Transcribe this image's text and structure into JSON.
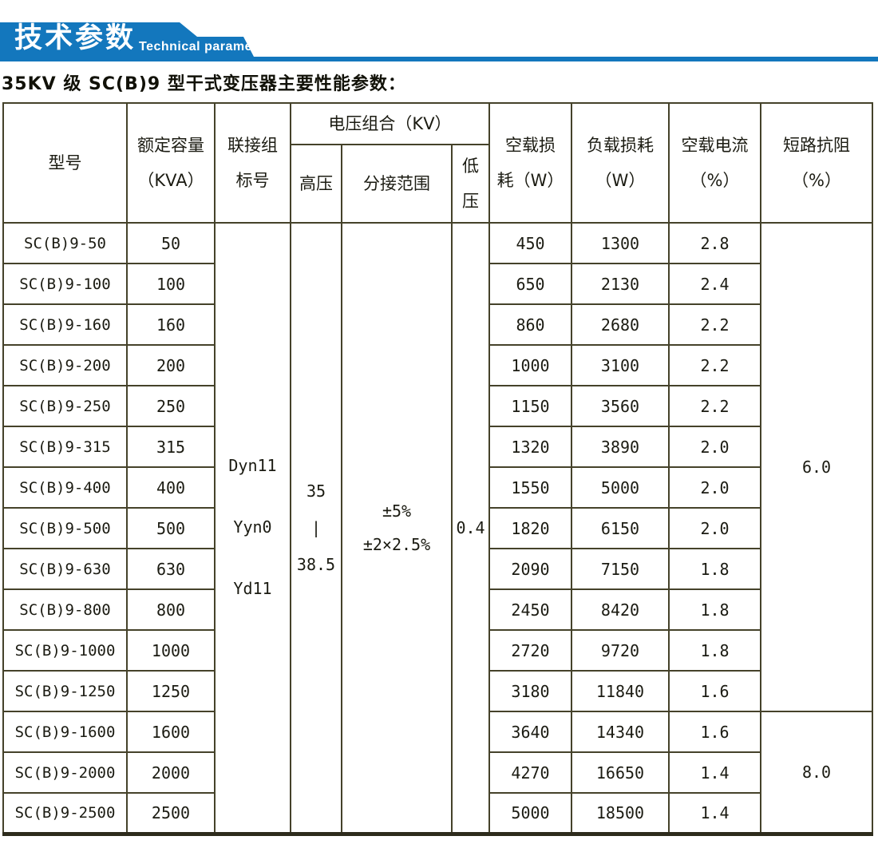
{
  "banner": {
    "title_cn": "技术参数",
    "title_en": "Technical parameter",
    "ribbon_color": "#1377bd"
  },
  "title": "35KV 级 SC(B)9 型干式变压器主要性能参数：",
  "table": {
    "header": {
      "model": "型号",
      "capacity": "额定容量\n（KVA）",
      "vector_group": "联接组\n标号",
      "voltage_combo": "电压组合（KV）",
      "hv": "高压",
      "tap_range": "分接范围",
      "lv": "低\n压",
      "no_load_loss": "空载损\n耗（W）",
      "load_loss": "负载损耗\n（W）",
      "no_load_current": "空载电流\n（%）",
      "impedance": "短路抗阻\n（%）"
    },
    "merged": {
      "vector_group": "Dyn11\nYyn0\nYd11",
      "hv": "35\n|\n38.5",
      "tap_range": "±5%\n±2×2.5%",
      "lv": "0.4",
      "impedance_groups": [
        {
          "value": "6.0",
          "rows": 12
        },
        {
          "value": "8.0",
          "rows": 3
        }
      ]
    },
    "rows": [
      {
        "model": "SC(B)9-50",
        "kva": "50",
        "no_load_loss": "450",
        "load_loss": "1300",
        "no_load_current": "2.8"
      },
      {
        "model": "SC(B)9-100",
        "kva": "100",
        "no_load_loss": "650",
        "load_loss": "2130",
        "no_load_current": "2.4"
      },
      {
        "model": "SC(B)9-160",
        "kva": "160",
        "no_load_loss": "860",
        "load_loss": "2680",
        "no_load_current": "2.2"
      },
      {
        "model": "SC(B)9-200",
        "kva": "200",
        "no_load_loss": "1000",
        "load_loss": "3100",
        "no_load_current": "2.2"
      },
      {
        "model": "SC(B)9-250",
        "kva": "250",
        "no_load_loss": "1150",
        "load_loss": "3560",
        "no_load_current": "2.2"
      },
      {
        "model": "SC(B)9-315",
        "kva": "315",
        "no_load_loss": "1320",
        "load_loss": "3890",
        "no_load_current": "2.0"
      },
      {
        "model": "SC(B)9-400",
        "kva": "400",
        "no_load_loss": "1550",
        "load_loss": "5000",
        "no_load_current": "2.0"
      },
      {
        "model": "SC(B)9-500",
        "kva": "500",
        "no_load_loss": "1820",
        "load_loss": "6150",
        "no_load_current": "2.0"
      },
      {
        "model": "SC(B)9-630",
        "kva": "630",
        "no_load_loss": "2090",
        "load_loss": "7150",
        "no_load_current": "1.8"
      },
      {
        "model": "SC(B)9-800",
        "kva": "800",
        "no_load_loss": "2450",
        "load_loss": "8420",
        "no_load_current": "1.8"
      },
      {
        "model": "SC(B)9-1000",
        "kva": "1000",
        "no_load_loss": "2720",
        "load_loss": "9720",
        "no_load_current": "1.8"
      },
      {
        "model": "SC(B)9-1250",
        "kva": "1250",
        "no_load_loss": "3180",
        "load_loss": "11840",
        "no_load_current": "1.6"
      },
      {
        "model": "SC(B)9-1600",
        "kva": "1600",
        "no_load_loss": "3640",
        "load_loss": "14340",
        "no_load_current": "1.6"
      },
      {
        "model": "SC(B)9-2000",
        "kva": "2000",
        "no_load_loss": "4270",
        "load_loss": "16650",
        "no_load_current": "1.4"
      },
      {
        "model": "SC(B)9-2500",
        "kva": "2500",
        "no_load_loss": "5000",
        "load_loss": "18500",
        "no_load_current": "1.4"
      }
    ]
  }
}
